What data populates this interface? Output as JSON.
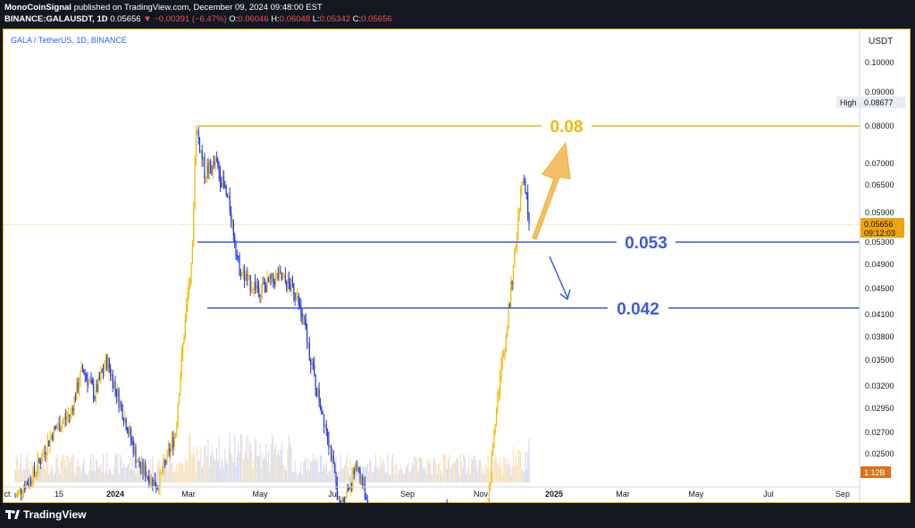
{
  "header": {
    "line1_author": "MonoCoinSignal",
    "line1_rest": "published on TradingView.com, December 09, 2024 09:48:00 EST",
    "symbol": "BINANCE:GALAUSDT, 1D",
    "price": "0.05656",
    "change": "▼ −0.00391 (−6.47%)",
    "o_label": "O:",
    "o_value": "0.06046",
    "h_label": "H:",
    "h_value": "0.06048",
    "l_label": "L:",
    "l_value": "0.05342",
    "c_label": "C:",
    "c_value": "0.05656"
  },
  "chart_title": "GALA / TetherUS, 1D, BINANCE",
  "footer": {
    "brand": "TradingView"
  },
  "chart_data": {
    "type": "candlestick",
    "axis_unit": "USDT",
    "y_ticks": [
      0.1,
      0.09,
      0.08,
      0.07,
      0.065,
      0.059,
      0.053,
      0.049,
      0.045,
      0.041,
      0.038,
      0.035,
      0.032,
      0.0295,
      0.027,
      0.025
    ],
    "y_tick_labels": [
      "0.10000",
      "0.09000",
      "0.08000",
      "0.07000",
      "0.06500",
      "0.05900",
      "0.05300",
      "0.04900",
      "0.04500",
      "0.04100",
      "0.03800",
      "0.03500",
      "0.03200",
      "0.02950",
      "0.02700",
      "0.02500"
    ],
    "x_tick_labels": [
      "ct",
      "15",
      "2024",
      "Mar",
      "May",
      "Jul",
      "Sep",
      "Nov",
      "2025",
      "Mar",
      "May",
      "Jul",
      "Sep"
    ],
    "x_tick_bold": [
      "2024",
      "2025"
    ],
    "high_label": "High",
    "high_value": "0.08677",
    "current_price_label": "0.05656",
    "countdown_label": "09:12:03",
    "volume_label": "1.12B",
    "price_path": [
      [
        "2023-10-10",
        0.021
      ],
      [
        "2023-10-25",
        0.023
      ],
      [
        "2023-11-10",
        0.027
      ],
      [
        "2023-11-25",
        0.029
      ],
      [
        "2023-12-05",
        0.034
      ],
      [
        "2023-12-15",
        0.031
      ],
      [
        "2023-12-25",
        0.035
      ],
      [
        "2024-01-05",
        0.03
      ],
      [
        "2024-01-20",
        0.024
      ],
      [
        "2024-02-05",
        0.022
      ],
      [
        "2024-02-20",
        0.027
      ],
      [
        "2024-02-28",
        0.04
      ],
      [
        "2024-03-05",
        0.052
      ],
      [
        "2024-03-08",
        0.08
      ],
      [
        "2024-03-15",
        0.068
      ],
      [
        "2024-03-25",
        0.07
      ],
      [
        "2024-04-05",
        0.06
      ],
      [
        "2024-04-12",
        0.049
      ],
      [
        "2024-04-20",
        0.046
      ],
      [
        "2024-05-01",
        0.045
      ],
      [
        "2024-05-15",
        0.047
      ],
      [
        "2024-05-28",
        0.045
      ],
      [
        "2024-06-05",
        0.04
      ],
      [
        "2024-06-15",
        0.032
      ],
      [
        "2024-06-25",
        0.027
      ],
      [
        "2024-07-05",
        0.02
      ],
      [
        "2024-07-20",
        0.024
      ],
      [
        "2024-08-05",
        0.017
      ],
      [
        "2024-08-25",
        0.018
      ],
      [
        "2024-09-15",
        0.017
      ],
      [
        "2024-10-01",
        0.02
      ],
      [
        "2024-10-20",
        0.018
      ],
      [
        "2024-11-05",
        0.02
      ],
      [
        "2024-11-12",
        0.03
      ],
      [
        "2024-11-20",
        0.038
      ],
      [
        "2024-11-28",
        0.052
      ],
      [
        "2024-12-03",
        0.066
      ],
      [
        "2024-12-07",
        0.062
      ],
      [
        "2024-12-09",
        0.05656
      ]
    ],
    "levels": [
      {
        "value": 0.08,
        "label": "0.08",
        "color": "#f0b90b"
      },
      {
        "value": 0.053,
        "label": "0.053",
        "color": "#3b5bdb"
      },
      {
        "value": 0.042,
        "label": "0.042",
        "color": "#3b5bdb"
      }
    ],
    "arrows": [
      {
        "direction": "up",
        "color": "#f7b955"
      },
      {
        "direction": "down",
        "color": "#3b5bdb"
      }
    ],
    "colors": {
      "up": "#f0b90b",
      "down": "#1e3dea",
      "frame": "#f0b90b",
      "accent_blue": "#3b5bdb"
    }
  }
}
